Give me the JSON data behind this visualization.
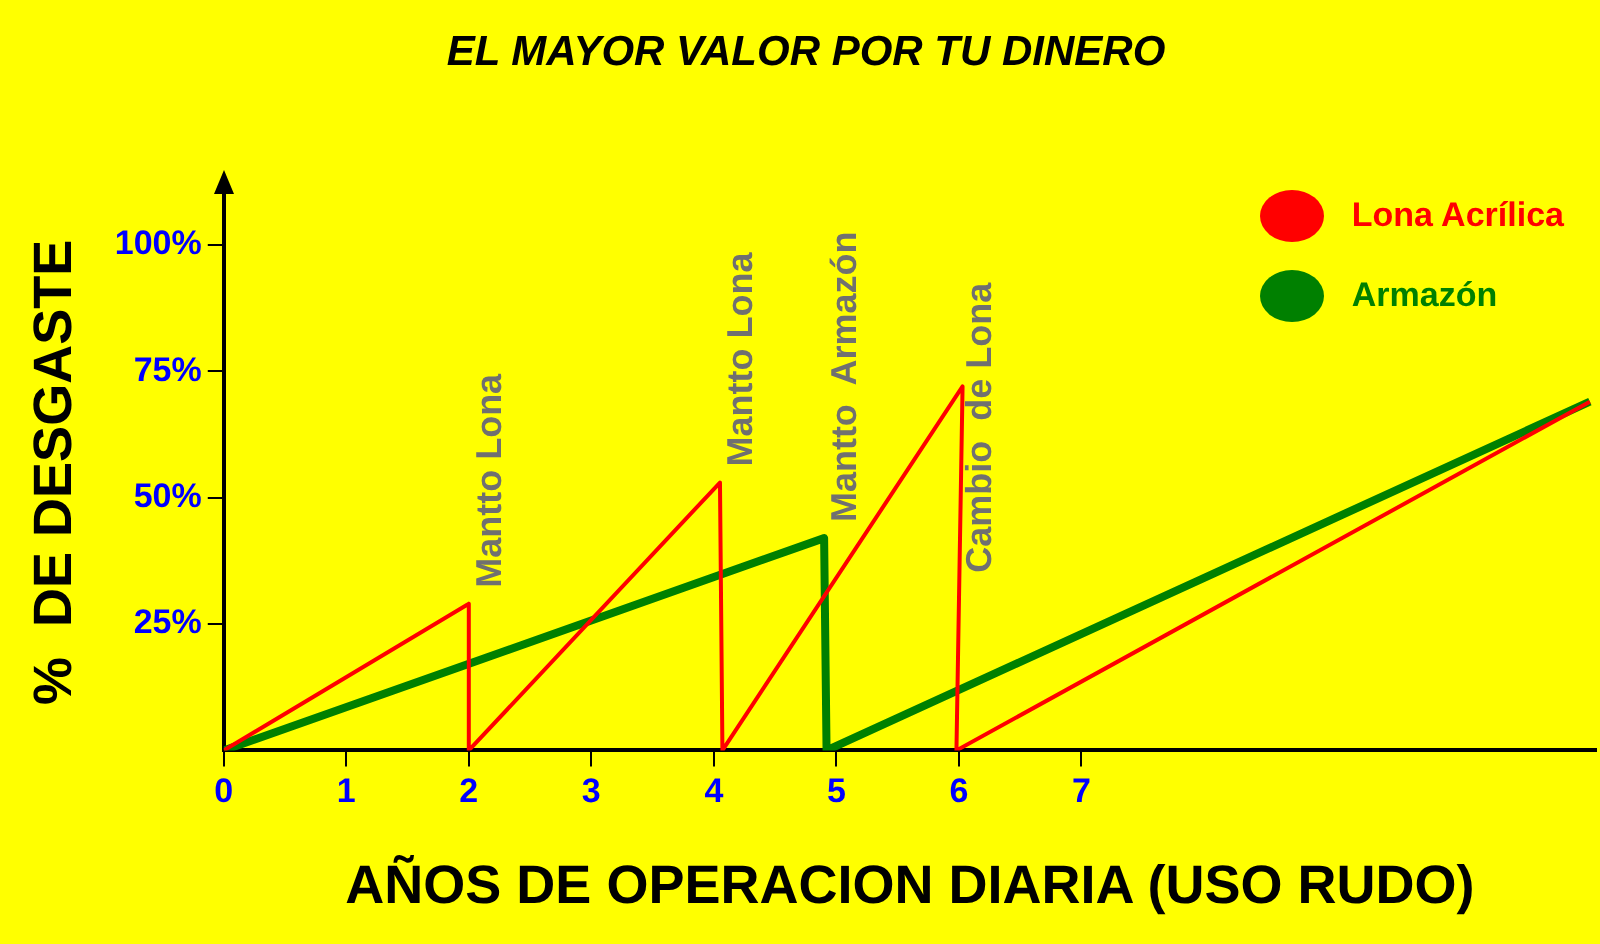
{
  "chart_data": {
    "type": "line",
    "title": "EL MAYOR VALOR POR TU DINERO",
    "xlabel": "AÑOS DE OPERACION DIARIA (USO RUDO)",
    "ylabel": "%  DE DESGASTE",
    "series": [
      {
        "name": "Lona Acrílica",
        "color": "#ff0000",
        "x": [
          0,
          2,
          2,
          4.05,
          4.07,
          6.03,
          5.98,
          11.15
        ],
        "values": [
          0,
          29,
          0,
          53,
          0,
          72,
          0,
          69
        ]
      },
      {
        "name": "Armazón",
        "color": "#008000",
        "x": [
          0,
          4.9,
          4.92,
          11.15
        ],
        "values": [
          0,
          42,
          0,
          69
        ]
      }
    ],
    "xlim": [
      0,
      11.2
    ],
    "xticks": [
      0,
      1,
      2,
      3,
      4,
      5,
      6,
      7
    ],
    "ylim": [
      0,
      110
    ],
    "yticks": [
      {
        "value": 25,
        "label": "25%"
      },
      {
        "value": 50,
        "label": "50%"
      },
      {
        "value": 75,
        "label": "75%"
      },
      {
        "value": 100,
        "label": "100%"
      }
    ],
    "annotations": [
      {
        "text": "Mantto Lona",
        "x": 2,
        "y": 29
      },
      {
        "text": "Mantto Lona",
        "x": 4.05,
        "y": 53
      },
      {
        "text": "Mantto  Armazón",
        "x": 4.9,
        "y": 42
      },
      {
        "text": "Cambio  de Lona",
        "x": 6,
        "y": 32
      }
    ],
    "grid": false,
    "legend": "top right",
    "marker": "none",
    "line_style": "solid"
  }
}
